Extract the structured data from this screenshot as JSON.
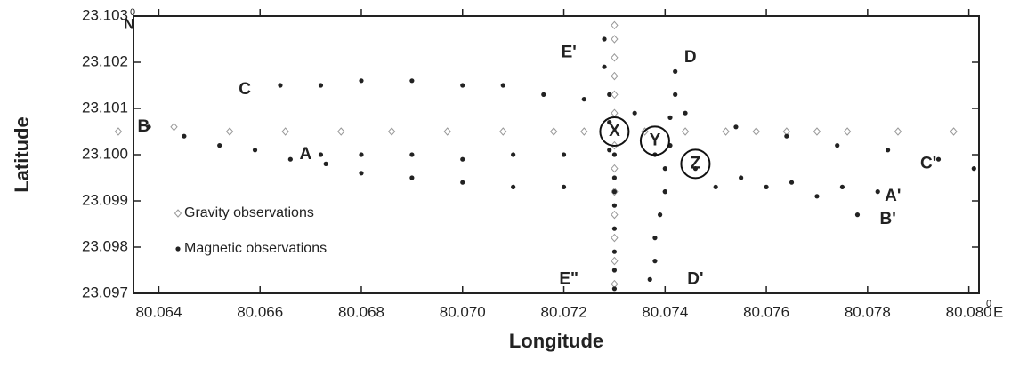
{
  "chart_data": {
    "type": "scatter",
    "x_label": "Longitude",
    "y_label": "Latitude",
    "degree_symbol": "0",
    "x_unit": "E",
    "y_unit": "N",
    "xlim": [
      80.0635,
      80.0802
    ],
    "ylim": [
      23.097,
      23.103
    ],
    "xticks": [
      80.064,
      80.066,
      80.068,
      {
        "value": 80.07,
        "label": "80.070"
      },
      80.072,
      80.074,
      80.076,
      80.078,
      {
        "value": 80.08,
        "label": "80.080"
      }
    ],
    "yticks": [
      23.097,
      23.098,
      23.099,
      {
        "value": 23.1,
        "label": "23.100"
      },
      23.101,
      23.102,
      23.103
    ],
    "legend": "lower left",
    "series": [
      {
        "name": "Gravity observations",
        "marker": "diamond",
        "color": "#999999",
        "x": [
          80.0632,
          80.0643,
          80.0654,
          80.0665,
          80.0676,
          80.0686,
          80.0697,
          80.0708,
          80.0718,
          80.0724,
          80.0736,
          80.0744,
          80.0752,
          80.0758,
          80.0764,
          80.077,
          80.0776,
          80.0786,
          80.0797,
          80.073,
          80.073,
          80.073,
          80.073,
          80.073,
          80.073,
          80.073,
          80.073,
          80.073,
          80.073,
          80.073,
          80.073,
          80.073
        ],
        "y": [
          23.1005,
          23.1006,
          23.1005,
          23.1005,
          23.1005,
          23.1005,
          23.1005,
          23.1005,
          23.1005,
          23.1005,
          23.1005,
          23.1005,
          23.1005,
          23.1005,
          23.1005,
          23.1005,
          23.1005,
          23.1005,
          23.1005,
          23.0972,
          23.0977,
          23.0982,
          23.0987,
          23.0992,
          23.0997,
          23.1002,
          23.1009,
          23.1013,
          23.1017,
          23.1021,
          23.1025,
          23.1028
        ]
      },
      {
        "name": "Magnetic observations",
        "marker": "dot",
        "color": "#222222",
        "x": [
          80.0638,
          80.0645,
          80.0652,
          80.0659,
          80.0666,
          80.0673,
          80.068,
          80.069,
          80.07,
          80.071,
          80.072,
          80.073,
          80.074,
          80.075,
          80.076,
          80.077,
          80.0778,
          80.0672,
          80.068,
          80.069,
          80.07,
          80.071,
          80.072,
          80.073,
          80.0738,
          80.0746,
          80.0755,
          80.0765,
          80.0775,
          80.0782,
          80.0664,
          80.0672,
          80.068,
          80.069,
          80.07,
          80.0708,
          80.0716,
          80.0724,
          80.0734,
          80.0744,
          80.0754,
          80.0764,
          80.0774,
          80.0784,
          80.0794,
          80.0801,
          80.0742,
          80.0742,
          80.0741,
          80.0741,
          80.074,
          80.074,
          80.0739,
          80.0738,
          80.0738,
          80.0737,
          80.0728,
          80.0728,
          80.0729,
          80.0729,
          80.0729,
          80.073,
          80.073,
          80.073,
          80.073,
          80.073,
          80.073
        ],
        "y": [
          23.1006,
          23.1004,
          23.1002,
          23.1001,
          23.0999,
          23.0998,
          23.0996,
          23.0995,
          23.0994,
          23.0993,
          23.0993,
          23.0992,
          23.0992,
          23.0993,
          23.0993,
          23.0991,
          23.0987,
          23.1,
          23.1,
          23.1,
          23.0999,
          23.1,
          23.1,
          23.1,
          23.1,
          23.0997,
          23.0995,
          23.0994,
          23.0993,
          23.0992,
          23.1015,
          23.1015,
          23.1016,
          23.1016,
          23.1015,
          23.1015,
          23.1013,
          23.1012,
          23.1009,
          23.1009,
          23.1006,
          23.1004,
          23.1002,
          23.1001,
          23.0999,
          23.0997,
          23.1018,
          23.1013,
          23.1008,
          23.1002,
          23.0997,
          23.0992,
          23.0987,
          23.0982,
          23.0977,
          23.0973,
          23.1025,
          23.1019,
          23.1013,
          23.1007,
          23.1001,
          23.0995,
          23.0989,
          23.0984,
          23.0979,
          23.0975,
          23.0971
        ]
      }
    ],
    "annotations": [
      {
        "text": "B",
        "x": 80.0637,
        "y": 23.1006
      },
      {
        "text": "A",
        "x": 80.0669,
        "y": 23.1
      },
      {
        "text": "C",
        "x": 80.0657,
        "y": 23.1014
      },
      {
        "text": "E'",
        "x": 80.0721,
        "y": 23.1022
      },
      {
        "text": "D",
        "x": 80.0745,
        "y": 23.1021
      },
      {
        "text": "X",
        "x": 80.073,
        "y": 23.1005,
        "circled": true
      },
      {
        "text": "Y",
        "x": 80.0738,
        "y": 23.1003,
        "circled": true
      },
      {
        "text": "Z",
        "x": 80.0746,
        "y": 23.0998,
        "circled": true
      },
      {
        "text": "C'",
        "x": 80.0792,
        "y": 23.0998
      },
      {
        "text": "A'",
        "x": 80.0785,
        "y": 23.0991
      },
      {
        "text": "B'",
        "x": 80.0784,
        "y": 23.0986
      },
      {
        "text": "E\"",
        "x": 80.0721,
        "y": 23.0973
      },
      {
        "text": "D'",
        "x": 80.0746,
        "y": 23.0973
      }
    ]
  }
}
